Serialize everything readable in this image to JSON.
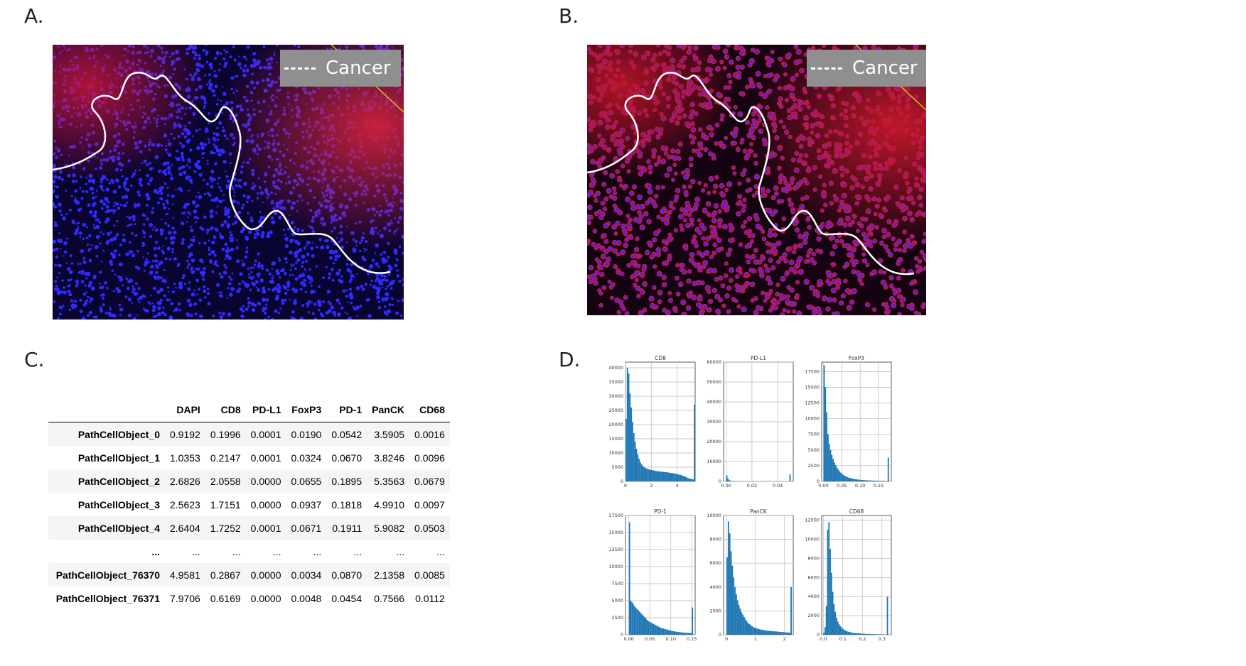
{
  "panels": {
    "a": {
      "label": "A.",
      "legend": "Cancer"
    },
    "b": {
      "label": "B.",
      "legend": "Cancer"
    },
    "c": {
      "label": "C."
    },
    "d": {
      "label": "D."
    }
  },
  "colors": {
    "nuclei": "#2f2bff",
    "cytoplasm": "#d4143a",
    "background": "#0b0420",
    "bar": "#1f77b4",
    "boundary": "#ffffff"
  },
  "table": {
    "columns": [
      "DAPI",
      "CD8",
      "PD-L1",
      "FoxP3",
      "PD-1",
      "PanCK",
      "CD68"
    ],
    "rows": [
      {
        "name": "PathCellObject_0",
        "values": [
          "0.9192",
          "0.1996",
          "0.0001",
          "0.0190",
          "0.0542",
          "3.5905",
          "0.0016"
        ]
      },
      {
        "name": "PathCellObject_1",
        "values": [
          "1.0353",
          "0.2147",
          "0.0001",
          "0.0324",
          "0.0670",
          "3.8246",
          "0.0096"
        ]
      },
      {
        "name": "PathCellObject_2",
        "values": [
          "2.6826",
          "2.0558",
          "0.0000",
          "0.0655",
          "0.1895",
          "5.3563",
          "0.0679"
        ]
      },
      {
        "name": "PathCellObject_3",
        "values": [
          "2.5623",
          "1.7151",
          "0.0000",
          "0.0937",
          "0.1818",
          "4.9910",
          "0.0097"
        ]
      },
      {
        "name": "PathCellObject_4",
        "values": [
          "2.6404",
          "1.7252",
          "0.0001",
          "0.0671",
          "0.1911",
          "5.9082",
          "0.0503"
        ]
      },
      {
        "name": "...",
        "values": [
          "...",
          "...",
          "...",
          "...",
          "...",
          "...",
          "..."
        ]
      },
      {
        "name": "PathCellObject_76370",
        "values": [
          "4.9581",
          "0.2867",
          "0.0000",
          "0.0034",
          "0.0870",
          "2.1358",
          "0.0085"
        ]
      },
      {
        "name": "PathCellObject_76371",
        "values": [
          "7.9706",
          "0.6169",
          "0.0000",
          "0.0048",
          "0.0454",
          "0.7566",
          "0.0112"
        ]
      }
    ]
  },
  "chart_data": [
    {
      "type": "bar",
      "title": "CD8",
      "xlim": [
        0,
        5.4
      ],
      "ylim": [
        0,
        42000
      ],
      "xticks": [
        {
          "v": 0,
          "label": "0"
        },
        {
          "v": 2,
          "label": "2"
        },
        {
          "v": 4,
          "label": "4"
        }
      ],
      "yticks": [
        {
          "v": 0,
          "label": "0"
        },
        {
          "v": 5000,
          "label": "5000"
        },
        {
          "v": 10000,
          "label": "10000"
        },
        {
          "v": 15000,
          "label": "15000"
        },
        {
          "v": 20000,
          "label": "20000"
        },
        {
          "v": 25000,
          "label": "25000"
        },
        {
          "v": 30000,
          "label": "30000"
        },
        {
          "v": 35000,
          "label": "35000"
        },
        {
          "v": 40000,
          "label": "40000"
        }
      ],
      "bin_width": 0.1,
      "values": [
        22000,
        40000,
        38000,
        31000,
        26000,
        21000,
        17000,
        14000,
        11500,
        9500,
        8000,
        6800,
        6000,
        5400,
        5000,
        4700,
        4500,
        4300,
        4200,
        4100,
        4000,
        3900,
        3800,
        3700,
        3600,
        3550,
        3500,
        3450,
        3400,
        3350,
        3300,
        3250,
        3200,
        3100,
        3000,
        2950,
        2900,
        2800,
        2700,
        2600,
        2500,
        2400,
        2300,
        2200,
        2000,
        1800,
        1600,
        1400,
        1200,
        1000,
        900,
        800,
        700,
        27000
      ]
    },
    {
      "type": "bar",
      "title": "PD-L1",
      "xlim": [
        -0.002,
        0.052
      ],
      "ylim": [
        0,
        60000
      ],
      "xticks": [
        {
          "v": 0,
          "label": "0.00"
        },
        {
          "v": 0.02,
          "label": "0.02"
        },
        {
          "v": 0.04,
          "label": "0.04"
        }
      ],
      "yticks": [
        {
          "v": 0,
          "label": "0"
        },
        {
          "v": 10000,
          "label": "10000"
        },
        {
          "v": 20000,
          "label": "20000"
        },
        {
          "v": 30000,
          "label": "30000"
        },
        {
          "v": 40000,
          "label": "40000"
        },
        {
          "v": 50000,
          "label": "50000"
        },
        {
          "v": 60000,
          "label": "60000"
        }
      ],
      "bin_width": 0.001,
      "values": [
        3000,
        1500,
        600,
        300,
        200,
        150,
        100,
        80,
        60,
        50,
        40,
        35,
        30,
        25,
        20,
        20,
        20,
        20,
        15,
        15,
        15,
        15,
        15,
        10,
        10,
        10,
        10,
        10,
        10,
        10,
        10,
        10,
        10,
        10,
        10,
        10,
        10,
        10,
        10,
        10,
        10,
        10,
        10,
        10,
        10,
        10,
        10,
        10,
        10,
        3500
      ]
    },
    {
      "type": "bar",
      "title": "FoxP3",
      "xlim": [
        -0.005,
        0.185
      ],
      "ylim": [
        0,
        19000
      ],
      "xticks": [
        {
          "v": 0,
          "label": "0.00"
        },
        {
          "v": 0.05,
          "label": "0.05"
        },
        {
          "v": 0.1,
          "label": "0.10"
        },
        {
          "v": 0.15,
          "label": "0.15"
        }
      ],
      "yticks": [
        {
          "v": 0,
          "label": "0"
        },
        {
          "v": 2500,
          "label": "2500"
        },
        {
          "v": 5000,
          "label": "5000"
        },
        {
          "v": 7500,
          "label": "7500"
        },
        {
          "v": 10000,
          "label": "10000"
        },
        {
          "v": 12500,
          "label": "12500"
        },
        {
          "v": 15000,
          "label": "15000"
        },
        {
          "v": 17500,
          "label": "17500"
        }
      ],
      "bin_width": 0.0035,
      "values": [
        18500,
        15000,
        11000,
        7500,
        6000,
        5000,
        4200,
        3600,
        3000,
        2600,
        2200,
        1900,
        1600,
        1400,
        1200,
        1050,
        900,
        800,
        700,
        620,
        550,
        500,
        450,
        400,
        360,
        330,
        300,
        280,
        260,
        240,
        220,
        200,
        190,
        180,
        170,
        160,
        150,
        140,
        130,
        120,
        110,
        100,
        100,
        90,
        90,
        80,
        80,
        80,
        70,
        70,
        3800
      ]
    },
    {
      "type": "bar",
      "title": "PD-1",
      "xlim": [
        -0.008,
        0.158
      ],
      "ylim": [
        0,
        17500
      ],
      "xticks": [
        {
          "v": 0,
          "label": "0.00"
        },
        {
          "v": 0.05,
          "label": "0.05"
        },
        {
          "v": 0.1,
          "label": "0.10"
        },
        {
          "v": 0.15,
          "label": "0.15"
        }
      ],
      "yticks": [
        {
          "v": 0,
          "label": "0"
        },
        {
          "v": 2500,
          "label": "2500"
        },
        {
          "v": 5000,
          "label": "5000"
        },
        {
          "v": 7500,
          "label": "7500"
        },
        {
          "v": 10000,
          "label": "10000"
        },
        {
          "v": 12500,
          "label": "12500"
        },
        {
          "v": 15000,
          "label": "15000"
        },
        {
          "v": 17500,
          "label": "17500"
        }
      ],
      "bin_width": 0.003,
      "values": [
        16500,
        5000,
        4800,
        4500,
        4200,
        4000,
        3800,
        3600,
        3400,
        3200,
        3000,
        2800,
        2600,
        2400,
        2200,
        2000,
        1900,
        1800,
        1700,
        1600,
        1500,
        1400,
        1300,
        1200,
        1100,
        1000,
        950,
        900,
        850,
        800,
        750,
        700,
        650,
        600,
        560,
        520,
        480,
        450,
        420,
        400,
        380,
        360,
        340,
        320,
        300,
        290,
        280,
        270,
        260,
        250,
        4000
      ]
    },
    {
      "type": "bar",
      "title": "PanCK",
      "xlim": [
        -0.1,
        2.3
      ],
      "ylim": [
        0,
        10000
      ],
      "xticks": [
        {
          "v": 0,
          "label": "0"
        },
        {
          "v": 1,
          "label": "1"
        },
        {
          "v": 2,
          "label": "2"
        }
      ],
      "yticks": [
        {
          "v": 0,
          "label": "0"
        },
        {
          "v": 2000,
          "label": "2000"
        },
        {
          "v": 4000,
          "label": "4000"
        },
        {
          "v": 6000,
          "label": "6000"
        },
        {
          "v": 8000,
          "label": "8000"
        },
        {
          "v": 10000,
          "label": "10000"
        }
      ],
      "bin_width": 0.045,
      "values": [
        6500,
        9500,
        8500,
        7000,
        5800,
        4800,
        4000,
        3400,
        2900,
        2500,
        2200,
        1900,
        1700,
        1500,
        1300,
        1150,
        1000,
        900,
        800,
        720,
        650,
        600,
        560,
        520,
        490,
        460,
        430,
        410,
        390,
        370,
        350,
        340,
        330,
        320,
        310,
        300,
        290,
        280,
        270,
        260,
        250,
        240,
        230,
        220,
        210,
        200,
        190,
        180,
        170,
        4000
      ]
    },
    {
      "type": "bar",
      "title": "CD68",
      "xlim": [
        -0.008,
        0.348
      ],
      "ylim": [
        0,
        12500
      ],
      "xticks": [
        {
          "v": 0,
          "label": "0.0"
        },
        {
          "v": 0.1,
          "label": "0.1"
        },
        {
          "v": 0.2,
          "label": "0.2"
        },
        {
          "v": 0.3,
          "label": "0.3"
        }
      ],
      "yticks": [
        {
          "v": 0,
          "label": "0"
        },
        {
          "v": 2000,
          "label": "2000"
        },
        {
          "v": 4000,
          "label": "4000"
        },
        {
          "v": 6000,
          "label": "6000"
        },
        {
          "v": 8000,
          "label": "8000"
        },
        {
          "v": 10000,
          "label": "10000"
        },
        {
          "v": 12000,
          "label": "12000"
        }
      ],
      "bin_width": 0.0065,
      "values": [
        200,
        800,
        3000,
        11000,
        11800,
        9000,
        6500,
        4500,
        3200,
        2400,
        1800,
        1400,
        1100,
        900,
        750,
        620,
        520,
        440,
        380,
        330,
        290,
        260,
        230,
        210,
        190,
        170,
        160,
        150,
        140,
        130,
        120,
        110,
        100,
        95,
        90,
        85,
        80,
        75,
        70,
        65,
        60,
        55,
        50,
        48,
        46,
        44,
        42,
        40,
        38,
        36,
        4000
      ]
    }
  ]
}
